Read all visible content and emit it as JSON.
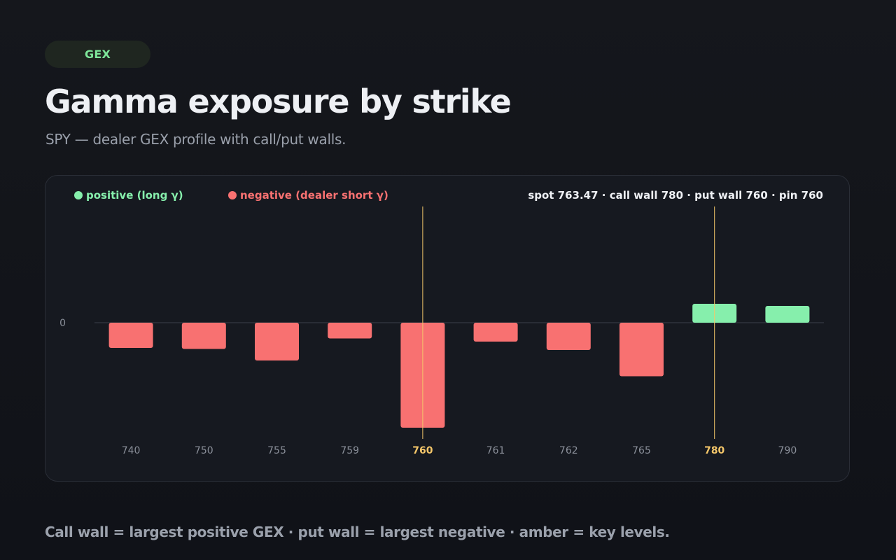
{
  "badge": "GEX",
  "title": "Gamma exposure by strike",
  "subtitle": "SPY — dealer GEX profile with call/put walls.",
  "footer": "Call wall = largest positive GEX · put wall = largest negative · amber = key levels.",
  "colors": {
    "positive": "#86efac",
    "negative": "#f87171",
    "key_level": "#f5c76a",
    "tick": "#8b909a",
    "stats": "#eef0f4"
  },
  "chart_data": {
    "type": "bar",
    "legend": [
      {
        "label": "positive (long γ)",
        "color": "#86efac"
      },
      {
        "label": "negative (dealer short γ)",
        "color": "#f87171"
      }
    ],
    "stats_line": "spot 763.47  ·  call wall 780  ·  put wall 760  ·  pin 760",
    "zero_label": "0",
    "categories": [
      "740",
      "750",
      "755",
      "759",
      "760",
      "761",
      "762",
      "765",
      "780",
      "790"
    ],
    "values": [
      -0.24,
      -0.25,
      -0.36,
      -0.15,
      -1.0,
      -0.18,
      -0.26,
      -0.51,
      0.18,
      0.16
    ],
    "highlight_categories": [
      "760",
      "780"
    ],
    "key_lines": [
      "760",
      "780"
    ],
    "ylim": [
      -1.1,
      1.1
    ]
  }
}
